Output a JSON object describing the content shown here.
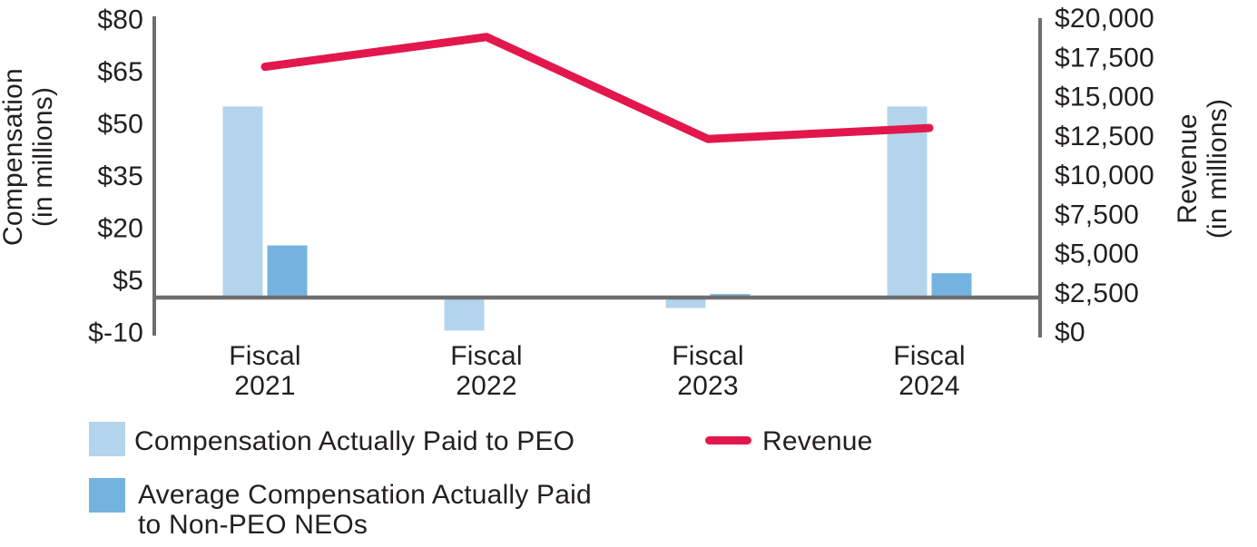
{
  "chart_data": {
    "type": "bar",
    "subtype": "combo-bar-line-dual-axis",
    "title": "",
    "categories": [
      "Fiscal 2021",
      "Fiscal 2022",
      "Fiscal 2023",
      "Fiscal 2024"
    ],
    "series": [
      {
        "name": "Compensation Actually Paid to PEO",
        "type": "bar",
        "axis": "left",
        "color": "#B3D4EC",
        "values": [
          55,
          -9.5,
          -3,
          55
        ]
      },
      {
        "name": "Average Compensation Actually Paid to Non-PEO NEOs",
        "type": "bar",
        "axis": "left",
        "color": "#74B3DF",
        "values": [
          15,
          0,
          1,
          7
        ]
      },
      {
        "name": "Revenue",
        "type": "line",
        "axis": "right",
        "color": "#E2174D",
        "values": [
          16900,
          18800,
          12300,
          13000
        ]
      }
    ],
    "left_axis": {
      "label": "Compensation (in millions)",
      "label_lines": [
        "Compensation",
        "(in millions)"
      ],
      "range": [
        -10,
        80
      ],
      "ticks": [
        {
          "label": "$80",
          "value": 80
        },
        {
          "label": "$65",
          "value": 65
        },
        {
          "label": "$50",
          "value": 50
        },
        {
          "label": "$35",
          "value": 35
        },
        {
          "label": "$20",
          "value": 20
        },
        {
          "label": "$5",
          "value": 5
        },
        {
          "label": "$-10",
          "value": -10
        }
      ]
    },
    "right_axis": {
      "label": "Revenue (in millions)",
      "label_lines": [
        "Revenue",
        "(in millions)"
      ],
      "range": [
        0,
        20000
      ],
      "ticks": [
        {
          "label": "$20,000",
          "value": 20000
        },
        {
          "label": "$17,500",
          "value": 17500
        },
        {
          "label": "$15,000",
          "value": 15000
        },
        {
          "label": "$12,500",
          "value": 12500
        },
        {
          "label": "$10,000",
          "value": 10000
        },
        {
          "label": "$7,500",
          "value": 7500
        },
        {
          "label": "$5,000",
          "value": 5000
        },
        {
          "label": "$2,500",
          "value": 2500
        },
        {
          "label": "$0",
          "value": 0
        }
      ]
    },
    "grid": false,
    "legend_position": "bottom-left"
  },
  "legend": {
    "peo_label": "Compensation Actually Paid to PEO",
    "revenue_label": "Revenue",
    "non_peo_line1": "Average Compensation Actually Paid",
    "non_peo_line2": "to Non-PEO NEOs"
  },
  "colors": {
    "peo_bar": "#B3D4EC",
    "non_peo_bar": "#74B3DF",
    "revenue_line": "#E2174D",
    "axis_gray": "#6D6E70",
    "text": "#231F20"
  }
}
